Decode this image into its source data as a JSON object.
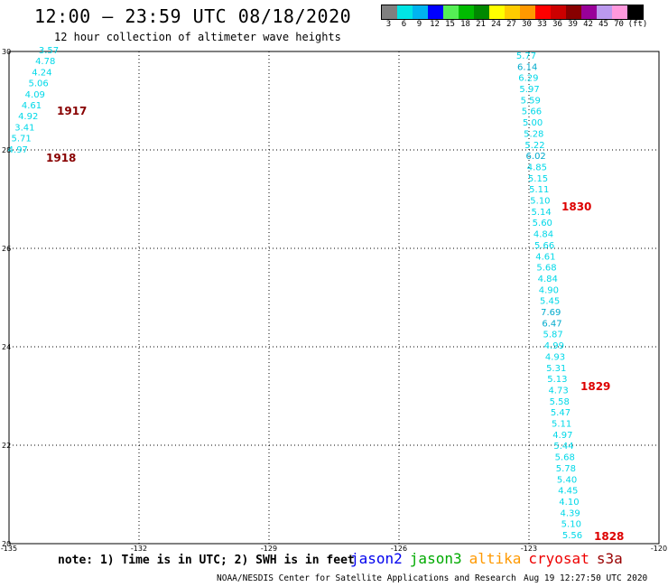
{
  "header": {
    "title": "12:00 – 23:59 UTC 08/18/2020",
    "subtitle": "12 hour collection of altimeter wave heights"
  },
  "color_scale": {
    "colors": [
      "#808080",
      "#00e5e5",
      "#00b4f0",
      "#0000ff",
      "#55ee55",
      "#00bb00",
      "#008800",
      "#ffff00",
      "#ffcc00",
      "#ff9900",
      "#ff0000",
      "#cc0000",
      "#880000",
      "#990099",
      "#bb99ee",
      "#ff99dd",
      "#000000"
    ],
    "labels": [
      "3",
      "6",
      "9",
      "12",
      "15",
      "18",
      "21",
      "24",
      "27",
      "30",
      "33",
      "36",
      "39",
      "42",
      "45",
      "70",
      "(ft)"
    ]
  },
  "map": {
    "lat_labels": [
      "30",
      "28",
      "26",
      "24",
      "22",
      "20"
    ],
    "lon_labels": [
      "-135",
      "-132",
      "-129",
      "-126",
      "-123",
      "-120"
    ],
    "track_west": {
      "values": [
        "3.57",
        "4.78",
        "4.24",
        "5.06",
        "4.09",
        "4.61",
        "4.92",
        "3.41",
        "5.71",
        "4.97"
      ],
      "colors": [
        "#00d8e8",
        "#00d8e8",
        "#00d8e8",
        "#00d8e8",
        "#00d8e8",
        "#00d8e8",
        "#00d8e8",
        "#00d8e8",
        "#00d8e8",
        "#00d8e8"
      ]
    },
    "track_east": {
      "values": [
        "5.77",
        "6.14",
        "6.29",
        "5.97",
        "5.59",
        "5.66",
        "5.00",
        "5.28",
        "5.22",
        "6.02",
        "4.85",
        "5.15",
        "5.11",
        "5.10",
        "5.14",
        "5.60",
        "4.84",
        "5.66",
        "4.61",
        "5.68",
        "4.84",
        "4.90",
        "5.45",
        "7.69",
        "6.47",
        "5.87",
        "4.99",
        "4.93",
        "5.31",
        "5.13",
        "4.73",
        "5.58",
        "5.47",
        "5.11",
        "4.97",
        "5.44",
        "5.68",
        "5.78",
        "5.40",
        "4.45",
        "4.10",
        "4.39",
        "5.10",
        "5.56"
      ],
      "colors": [
        "#00d8e8",
        "#00aacc",
        "#00d8e8",
        "#00d8e8",
        "#00d8e8",
        "#00d8e8",
        "#00d8e8",
        "#00d8e8",
        "#00d8e8",
        "#00aacc",
        "#00d8e8",
        "#00d8e8",
        "#00d8e8",
        "#00d8e8",
        "#00d8e8",
        "#00d8e8",
        "#00d8e8",
        "#00d8e8",
        "#00d8e8",
        "#00d8e8",
        "#00d8e8",
        "#00d8e8",
        "#00d8e8",
        "#00aacc",
        "#00aacc",
        "#00d8e8",
        "#00d8e8",
        "#00d8e8",
        "#00d8e8",
        "#00d8e8",
        "#00d8e8",
        "#00d8e8",
        "#00d8e8",
        "#00d8e8",
        "#00d8e8",
        "#00d8e8",
        "#00d8e8",
        "#00d8e8",
        "#00d8e8",
        "#00d8e8",
        "#00d8e8",
        "#00d8e8",
        "#00d8e8",
        "#00d8e8"
      ]
    },
    "time_labels": [
      {
        "text": "1917",
        "color": "#880000"
      },
      {
        "text": "1918",
        "color": "#880000"
      },
      {
        "text": "1830",
        "color": "#dd0000"
      },
      {
        "text": "1829",
        "color": "#dd0000"
      },
      {
        "text": "1828",
        "color": "#dd0000"
      }
    ]
  },
  "footer": {
    "note": "note: 1) Time is in UTC; 2) SWH is in feet",
    "satellites": [
      {
        "name": "jason2",
        "color": "#0000ee"
      },
      {
        "name": "jason3",
        "color": "#00aa00"
      },
      {
        "name": "altika",
        "color": "#ff9900"
      },
      {
        "name": "cryosat",
        "color": "#ee0000"
      },
      {
        "name": "s3a",
        "color": "#990000"
      }
    ],
    "credit": "NOAA/NESDIS Center for Satellite Applications and Research",
    "timestamp": "Aug 19 12:27:50 UTC 2020"
  }
}
